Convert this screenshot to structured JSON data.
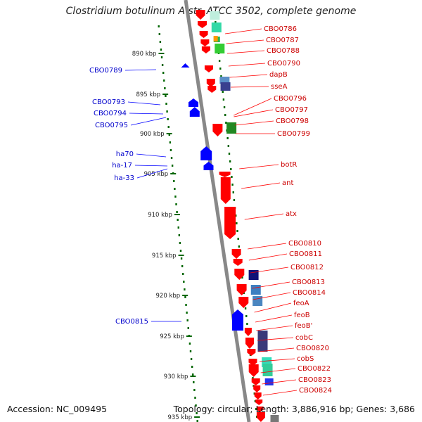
{
  "title": "Clostridium botulinum A str. ATCC 3502, complete genome",
  "footer": {
    "accession": "Accession: NC_009495",
    "topology": "Topology: circular; Length: 3,886,916 bp; Genes: 3,686"
  },
  "colors": {
    "forward_gene": "#ff0000",
    "reverse_gene": "#0000ff",
    "label_forward": "#cc0000",
    "label_reverse": "#0000cc",
    "tick": "#006600",
    "backbone": "#888888"
  },
  "ticks": [
    {
      "label": "890 kbp"
    },
    {
      "label": "895 kbp"
    },
    {
      "label": "900 kbp"
    },
    {
      "label": "905 kbp"
    },
    {
      "label": "910 kbp"
    },
    {
      "label": "915 kbp"
    },
    {
      "label": "920 kbp"
    },
    {
      "label": "925 kbp"
    },
    {
      "label": "930 kbp"
    },
    {
      "label": "935 kbp"
    }
  ],
  "left_labels": [
    {
      "name": "CBO0789"
    },
    {
      "name": "CBO0793"
    },
    {
      "name": "CBO0794"
    },
    {
      "name": "CBO0795"
    },
    {
      "name": "ha70"
    },
    {
      "name": "ha-17"
    },
    {
      "name": "ha-33"
    },
    {
      "name": "CBO0815"
    }
  ],
  "right_labels": [
    {
      "name": "CBO0786"
    },
    {
      "name": "CBO0787"
    },
    {
      "name": "CBO0788"
    },
    {
      "name": "CBO0790"
    },
    {
      "name": "dapB"
    },
    {
      "name": "sseA"
    },
    {
      "name": "CBO0796"
    },
    {
      "name": "CBO0797"
    },
    {
      "name": "CBO0798"
    },
    {
      "name": "CBO0799"
    },
    {
      "name": "botR"
    },
    {
      "name": "ant"
    },
    {
      "name": "atx"
    },
    {
      "name": "CBO0810"
    },
    {
      "name": "CBO0811"
    },
    {
      "name": "CBO0812"
    },
    {
      "name": "CBO0813"
    },
    {
      "name": "CBO0814"
    },
    {
      "name": "feoA"
    },
    {
      "name": "feoB"
    },
    {
      "name": "feoB'"
    },
    {
      "name": "cobC"
    },
    {
      "name": "CBO0820"
    },
    {
      "name": "cobS"
    },
    {
      "name": "CBO0822"
    },
    {
      "name": "CBO0823"
    },
    {
      "name": "CBO0824"
    }
  ]
}
